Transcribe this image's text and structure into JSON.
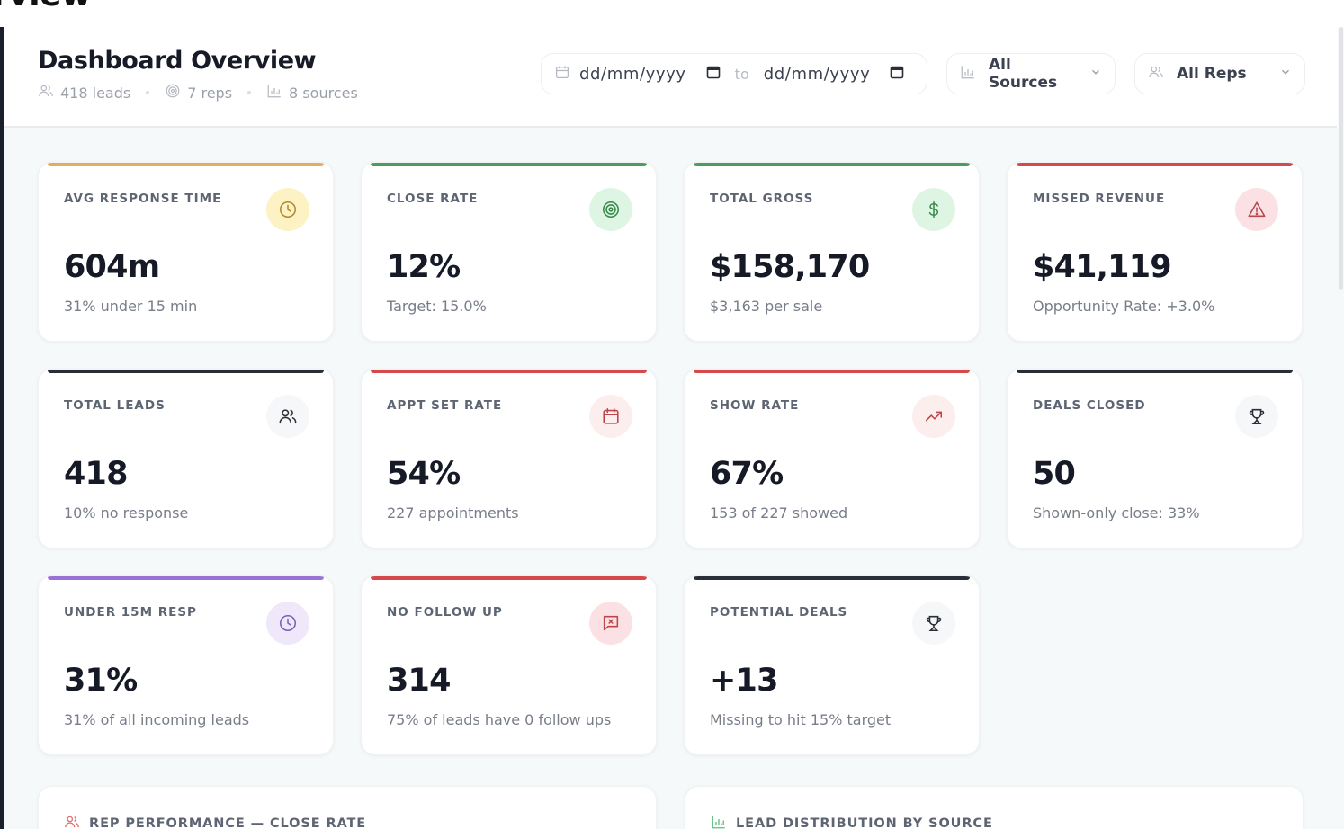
{
  "clipped_heading": "rview",
  "header": {
    "title": "Dashboard Overview",
    "meta": [
      {
        "icon": "users-icon",
        "text": "418 leads"
      },
      {
        "icon": "target-icon",
        "text": "7 reps"
      },
      {
        "icon": "bar-chart-icon",
        "text": "8 sources"
      }
    ],
    "date_from": {
      "placeholder": "dd/mm/yyyy"
    },
    "date_separator": "to",
    "date_to": {
      "placeholder": "dd/mm/yyyy"
    },
    "source_filter": {
      "icon": "bar-chart-icon",
      "selected": "All Sources"
    },
    "rep_filter": {
      "icon": "users-icon",
      "selected": "All Reps"
    }
  },
  "kpi_cards": [
    {
      "label": "AVG RESPONSE TIME",
      "value": "604m",
      "sub": "31% under 15 min",
      "icon": "clock-icon",
      "accent": "#e3ad5d",
      "icon_color": "#b08a2e",
      "icon_bg": "#fcf2c4"
    },
    {
      "label": "CLOSE RATE",
      "value": "12%",
      "sub": "Target: 15.0%",
      "icon": "target-icon",
      "accent": "#4f9a5e",
      "icon_color": "#3a8a4c",
      "icon_bg": "#dff5e4"
    },
    {
      "label": "TOTAL GROSS",
      "value": "$158,170",
      "sub": "$3,163 per sale",
      "icon": "dollar-icon",
      "accent": "#4f9a5e",
      "icon_color": "#3a8a4c",
      "icon_bg": "#dff5e4"
    },
    {
      "label": "MISSED REVENUE",
      "value": "$41,119",
      "sub": "Opportunity Rate: +3.0%",
      "icon": "alert-triangle-icon",
      "accent": "#d5494a",
      "icon_color": "#b9474c",
      "icon_bg": "#fbe1e3"
    },
    {
      "label": "TOTAL LEADS",
      "value": "418",
      "sub": "10% no response",
      "icon": "users-icon",
      "accent": "#2a2e38",
      "icon_color": "#2a2e38",
      "icon_bg": "#f6f7f8"
    },
    {
      "label": "APPT SET RATE",
      "value": "54%",
      "sub": "227 appointments",
      "icon": "calendar-icon",
      "accent": "#d5494a",
      "icon_color": "#b9474c",
      "icon_bg": "#fdeeee"
    },
    {
      "label": "SHOW RATE",
      "value": "67%",
      "sub": "153 of 227 showed",
      "icon": "trending-up-icon",
      "accent": "#d5494a",
      "icon_color": "#b9474c",
      "icon_bg": "#fdeeee"
    },
    {
      "label": "DEALS CLOSED",
      "value": "50",
      "sub": "Shown-only close: 33%",
      "icon": "trophy-icon",
      "accent": "#2a2e38",
      "icon_color": "#2a2e38",
      "icon_bg": "#f6f7f8"
    },
    {
      "label": "UNDER 15M RESP",
      "value": "31%",
      "sub": "31% of all incoming leads",
      "icon": "clock-icon",
      "accent": "#9a72d6",
      "icon_color": "#7b62b5",
      "icon_bg": "#efe8fb"
    },
    {
      "label": "NO FOLLOW UP",
      "value": "314",
      "sub": "75% of leads have 0 follow ups",
      "icon": "message-x-icon",
      "accent": "#d5494a",
      "icon_color": "#b9474c",
      "icon_bg": "#fbe1e3"
    },
    {
      "label": "POTENTIAL DEALS",
      "value": "+13",
      "sub": "Missing to hit 15% target",
      "icon": "trophy-icon",
      "accent": "#2a2e38",
      "icon_color": "#2a2e38",
      "icon_bg": "#f6f7f8"
    }
  ],
  "panels": {
    "rep_performance": {
      "title": "REP PERFORMANCE — CLOSE RATE",
      "icon": "users-icon",
      "icon_color": "#e07070"
    },
    "lead_distribution": {
      "title": "LEAD DISTRIBUTION BY SOURCE",
      "icon": "bar-chart-icon",
      "icon_color": "#5fbf7a"
    }
  }
}
